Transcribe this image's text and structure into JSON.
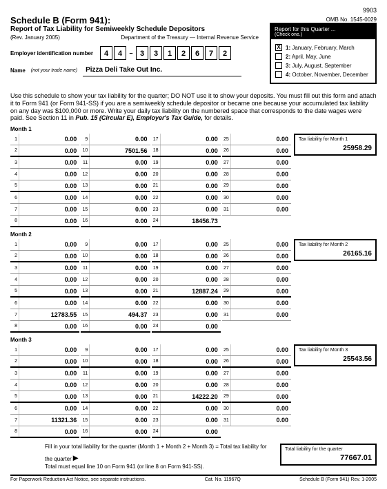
{
  "formCode": "9903",
  "title": "Schedule B (Form 941):",
  "subtitle": "Report of Tax Liability for Semiweekly Schedule Depositors",
  "rev": "(Rev. January 2005)",
  "dept": "Department of the Treasury — Internal Revenue Service",
  "omb": "OMB No. 1545-0029",
  "einLabel": "Employer identification number",
  "ein": [
    "4",
    "4",
    "3",
    "3",
    "1",
    "2",
    "6",
    "7",
    "2"
  ],
  "nameLabel": "Name",
  "nameSub": "(not your trade name)",
  "name": "Pizza Deli Take Out  Inc.",
  "quarterHead": "Report for this Quarter ...",
  "quarterSub": "(Check one.)",
  "quarters": [
    {
      "n": "1:",
      "label": "January, February, March",
      "checked": "X"
    },
    {
      "n": "2:",
      "label": "April, May, June",
      "checked": ""
    },
    {
      "n": "3:",
      "label": "July, August, September",
      "checked": ""
    },
    {
      "n": "4:",
      "label": "October, November, December",
      "checked": ""
    }
  ],
  "instructions": "Use this schedule to show your tax liability for the quarter; DO NOT use it to show your deposits. You must fill out this form and attach it to Form 941 (or Form 941-SS) if you are a semiweekly schedule depositor or became one because your accumulated tax liability on any day was $100,000 or more. Write your daily tax liability on the numbered space that corresponds to the date wages were paid. See Section 11 in",
  "instrItal": "Pub. 15 (Circular E), Employer's Tax Guide,",
  "instrEnd": "for details.",
  "months": [
    {
      "label": "Month 1",
      "liabLabel": "Tax liability for Month 1",
      "liab": "25958.29",
      "days": {
        "1": "0.00",
        "2": "0.00",
        "3": "0.00",
        "4": "0.00",
        "5": "0.00",
        "6": "0.00",
        "7": "0.00",
        "8": "0.00",
        "9": "0.00",
        "10": "7501.56",
        "11": "0.00",
        "12": "0.00",
        "13": "0.00",
        "14": "0.00",
        "15": "0.00",
        "16": "0.00",
        "17": "0.00",
        "18": "0.00",
        "19": "0.00",
        "20": "0.00",
        "21": "0.00",
        "22": "0.00",
        "23": "0.00",
        "24": "18456.73",
        "25": "0.00",
        "26": "0.00",
        "27": "0.00",
        "28": "0.00",
        "29": "0.00",
        "30": "0.00",
        "31": "0.00"
      }
    },
    {
      "label": "Month 2",
      "liabLabel": "Tax liability for Month 2",
      "liab": "26165.16",
      "days": {
        "1": "0.00",
        "2": "0.00",
        "3": "0.00",
        "4": "0.00",
        "5": "0.00",
        "6": "0.00",
        "7": "12783.55",
        "8": "0.00",
        "9": "0.00",
        "10": "0.00",
        "11": "0.00",
        "12": "0.00",
        "13": "0.00",
        "14": "0.00",
        "15": "494.37",
        "16": "0.00",
        "17": "0.00",
        "18": "0.00",
        "19": "0.00",
        "20": "0.00",
        "21": "12887.24",
        "22": "0.00",
        "23": "0.00",
        "24": "0.00",
        "25": "0.00",
        "26": "0.00",
        "27": "0.00",
        "28": "0.00",
        "29": "0.00",
        "30": "0.00",
        "31": "0.00"
      }
    },
    {
      "label": "Month 3",
      "liabLabel": "Tax liability for Month 3",
      "liab": "25543.56",
      "days": {
        "1": "0.00",
        "2": "0.00",
        "3": "0.00",
        "4": "0.00",
        "5": "0.00",
        "6": "0.00",
        "7": "11321.36",
        "8": "0.00",
        "9": "0.00",
        "10": "0.00",
        "11": "0.00",
        "12": "0.00",
        "13": "0.00",
        "14": "0.00",
        "15": "0.00",
        "16": "0.00",
        "17": "0.00",
        "18": "0.00",
        "19": "0.00",
        "20": "0.00",
        "21": "14222.20",
        "22": "0.00",
        "23": "0.00",
        "24": "0.00",
        "25": "0.00",
        "26": "0.00",
        "27": "0.00",
        "28": "0.00",
        "29": "0.00",
        "30": "0.00",
        "31": "0.00"
      }
    }
  ],
  "totalText1": "Fill in your total liability for the quarter (Month 1 + Month 2 + Month 3) = Total tax liability for the quarter",
  "totalText2": "Total must equal line 10 on Form 941 (or line 8 on Form 941-SS).",
  "totalBoxLabel": "Total liability for the quarter",
  "total": "77667.01",
  "footerLeft": "For Paperwork Reduction Act Notice, see separate instructions.",
  "footerMid": "Cat. No. 11967Q",
  "footerRight": "Schedule B (Form 941) Rev. 1-2005"
}
